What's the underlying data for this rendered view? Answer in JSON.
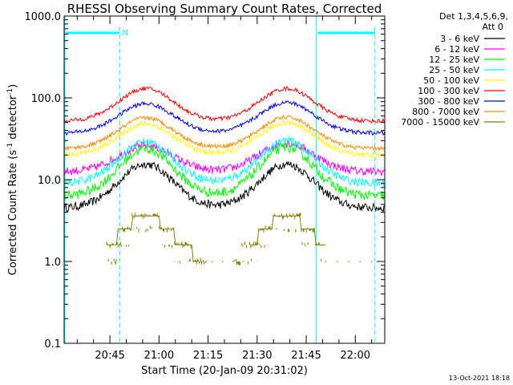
{
  "chart_data": {
    "type": "line",
    "title": "RHESSI Observing Summary Count Rates, Corrected",
    "xlabel": "Start Time (20-Jan-09 20:31:02)",
    "ylabel_main": "Corrected Count Rate (s",
    "ylabel_sup1": "-1",
    "ylabel_mid": " detector",
    "ylabel_sup2": "-1",
    "ylabel_end": ")",
    "y_scale": "log",
    "ylim": [
      0.1,
      1000
    ],
    "xlim_minutes": [
      0,
      98
    ],
    "x_tick_minutes": [
      14,
      29,
      44,
      59,
      74,
      89
    ],
    "x_tick_labels": [
      "20:45",
      "21:00",
      "21:15",
      "21:30",
      "21:45",
      "22:00"
    ],
    "y_tick_values": [
      0.1,
      1,
      10,
      100,
      1000
    ],
    "y_tick_labels": [
      "0.1",
      "1.0",
      "10.0",
      "100.0",
      "1000.0"
    ],
    "legend_title_1": "Det 1,3,4,5,6,9,",
    "legend_title_2": "Att 0",
    "legend_placement": "right",
    "flags": {
      "night_bar_label": "N",
      "night_intervals_minutes": [
        [
          0,
          17
        ],
        [
          77,
          95
        ]
      ],
      "dashed_markers_minutes": [
        17,
        95
      ],
      "solid_markers_minutes": [
        0,
        77
      ],
      "flag_color": "#00ffff"
    },
    "series": [
      {
        "name": "3 - 6 keV",
        "color": "#000000",
        "base": 4.5,
        "peaks": [
          15.5,
          15.5
        ]
      },
      {
        "name": "6 - 12 keV",
        "color": "#ff00ff",
        "base": 12.5,
        "peaks": [
          26,
          28
        ]
      },
      {
        "name": "12 - 25 keV",
        "color": "#00ff00",
        "base": 6.3,
        "peaks": [
          24,
          25
        ]
      },
      {
        "name": "25 - 50 keV",
        "color": "#00ffff",
        "base": 9.0,
        "peaks": [
          29,
          30
        ]
      },
      {
        "name": "50 - 100 keV",
        "color": "#ffff00",
        "base": 20,
        "peaks": [
          48,
          50
        ]
      },
      {
        "name": "100 - 300 keV",
        "color": "#ff0000",
        "base": 52,
        "peaks": [
          130,
          130
        ]
      },
      {
        "name": "300 - 800 keV",
        "color": "#0000ff",
        "base": 37,
        "peaks": [
          85,
          88
        ]
      },
      {
        "name": "800 - 7000 keV",
        "color": "#ff8800",
        "base": 24,
        "peaks": [
          57,
          58
        ]
      },
      {
        "name": "7000 - 15000 keV",
        "color": "#808000",
        "base": 1.0,
        "peaks": [
          3.6,
          3.6
        ]
      }
    ],
    "peak_times_minutes": [
      25,
      68
    ],
    "timestamp": "13-Oct-2021 18:18"
  }
}
